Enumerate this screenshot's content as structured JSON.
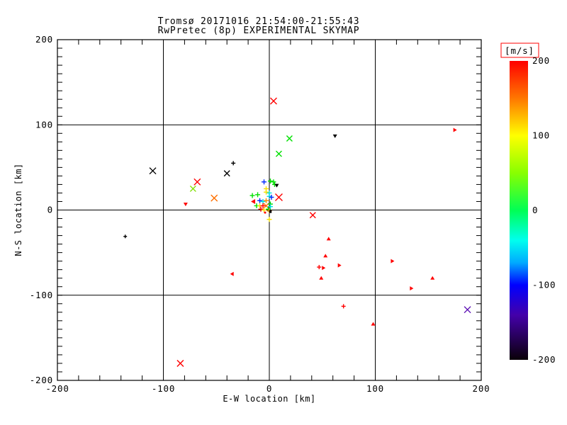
{
  "page": {
    "background": "#ffffff",
    "frame_color": "#000000"
  },
  "chart_data": {
    "type": "scatter",
    "title": "Tromsø 20171016 21:54:00-21:55:43",
    "subtitle": "RwPretec (8p) EXPERIMENTAL SKYMAP",
    "xlabel": "E-W location [km]",
    "ylabel": "N-S location [km]",
    "xlim": [
      -200,
      200
    ],
    "ylim": [
      -200,
      200
    ],
    "xticks": [
      -200,
      -100,
      0,
      100,
      200
    ],
    "yticks": [
      -200,
      -100,
      0,
      100,
      200
    ],
    "x_minor_step": 20,
    "y_minor_step": 10,
    "grid": true,
    "legend_position": "right-colorbar",
    "colorbar": {
      "label": "[m/s]",
      "label_box_color": "#ff0000",
      "range": [
        -200,
        200
      ],
      "ticks": [
        200,
        100,
        0,
        -100,
        -200
      ],
      "stops": [
        {
          "v": 200,
          "color": "#ff0000"
        },
        {
          "v": 150,
          "color": "#ff7700"
        },
        {
          "v": 100,
          "color": "#ffff00"
        },
        {
          "v": 50,
          "color": "#88ff00"
        },
        {
          "v": 0,
          "color": "#00ff55"
        },
        {
          "v": -40,
          "color": "#00ffee"
        },
        {
          "v": -70,
          "color": "#00aaff"
        },
        {
          "v": -100,
          "color": "#0000ff"
        },
        {
          "v": -140,
          "color": "#4400aa"
        },
        {
          "v": -200,
          "color": "#0a0008"
        }
      ]
    },
    "points": [
      {
        "ew": 4,
        "ns": 128,
        "v": 190,
        "color": "#ff0000",
        "marker": "x"
      },
      {
        "ew": 19,
        "ns": 84,
        "v": 50,
        "color": "#00e000",
        "marker": "x",
        "size": 8
      },
      {
        "ew": 9,
        "ns": 66,
        "v": 50,
        "color": "#00e000",
        "marker": "x",
        "size": 8
      },
      {
        "ew": 62,
        "ns": 87,
        "v": -200,
        "color": "#000000",
        "marker": "tri-down"
      },
      {
        "ew": 175,
        "ns": 94,
        "v": 190,
        "color": "#ff0000",
        "marker": "tri-right"
      },
      {
        "ew": -110,
        "ns": 46,
        "v": -200,
        "color": "#000000",
        "marker": "x"
      },
      {
        "ew": -34,
        "ns": 55,
        "v": -200,
        "color": "#000000",
        "marker": "plus",
        "size": 6
      },
      {
        "ew": -40,
        "ns": 43,
        "v": -200,
        "color": "#000000",
        "marker": "x",
        "size": 8
      },
      {
        "ew": -68,
        "ns": 33,
        "v": 190,
        "color": "#ff0000",
        "marker": "x"
      },
      {
        "ew": -72,
        "ns": 25,
        "v": 80,
        "color": "#7fe000",
        "marker": "x",
        "size": 8
      },
      {
        "ew": -52,
        "ns": 14,
        "v": 150,
        "color": "#ff7000",
        "marker": "x"
      },
      {
        "ew": -79,
        "ns": 7,
        "v": 190,
        "color": "#ff0000",
        "marker": "tri-down",
        "size": 4
      },
      {
        "ew": -136,
        "ns": -31,
        "v": -200,
        "color": "#000000",
        "marker": "plus",
        "size": 5
      },
      {
        "ew": -35,
        "ns": -75,
        "v": 190,
        "color": "#ff0000",
        "marker": "tri-left",
        "size": 4
      },
      {
        "ew": -84,
        "ns": -180,
        "v": 190,
        "color": "#ff0000",
        "marker": "x"
      },
      {
        "ew": 41,
        "ns": -6,
        "v": 190,
        "color": "#ff0000",
        "marker": "x",
        "size": 8
      },
      {
        "ew": 56,
        "ns": -34,
        "v": 190,
        "color": "#ff0000",
        "marker": "tri-up",
        "size": 4
      },
      {
        "ew": 53,
        "ns": -54,
        "v": 190,
        "color": "#ff0000",
        "marker": "tri-up",
        "size": 4
      },
      {
        "ew": 47,
        "ns": -67,
        "v": 190,
        "color": "#ff0000",
        "marker": "plus",
        "size": 6
      },
      {
        "ew": 51,
        "ns": -68,
        "v": 190,
        "color": "#ff0000",
        "marker": "tri-right",
        "size": 4
      },
      {
        "ew": 66,
        "ns": -65,
        "v": 190,
        "color": "#ff0000",
        "marker": "tri-right",
        "size": 4
      },
      {
        "ew": 49,
        "ns": -80,
        "v": 190,
        "color": "#ff0000",
        "marker": "tri-up",
        "size": 4
      },
      {
        "ew": 70,
        "ns": -113,
        "v": 190,
        "color": "#ff0000",
        "marker": "plus",
        "size": 6
      },
      {
        "ew": 98,
        "ns": -134,
        "v": 190,
        "color": "#ff0000",
        "marker": "tri-up",
        "size": 4
      },
      {
        "ew": 116,
        "ns": -60,
        "v": 190,
        "color": "#ff0000",
        "marker": "tri-right",
        "size": 4
      },
      {
        "ew": 134,
        "ns": -92,
        "v": 190,
        "color": "#ff0000",
        "marker": "tri-right",
        "size": 4
      },
      {
        "ew": 154,
        "ns": -80,
        "v": 190,
        "color": "#ff0000",
        "marker": "tri-up",
        "size": 4
      },
      {
        "ew": 187,
        "ns": -117,
        "v": -150,
        "color": "#5c0fb4",
        "marker": "x"
      },
      {
        "ew": -5,
        "ns": 33,
        "v": -95,
        "color": "#0028ff",
        "marker": "plus"
      },
      {
        "ew": 1,
        "ns": 34,
        "v": 40,
        "color": "#00e000",
        "marker": "plus"
      },
      {
        "ew": 4,
        "ns": 33,
        "v": 40,
        "color": "#00e000",
        "marker": "plus"
      },
      {
        "ew": 5,
        "ns": 30,
        "v": 40,
        "color": "#00e000",
        "marker": "plus"
      },
      {
        "ew": 7,
        "ns": 29,
        "v": -200,
        "color": "#000000",
        "marker": "tri-down",
        "size": 4
      },
      {
        "ew": -3,
        "ns": 25,
        "v": 100,
        "color": "#f5e000",
        "marker": "plus"
      },
      {
        "ew": -16,
        "ns": 17,
        "v": 40,
        "color": "#00e000",
        "marker": "plus"
      },
      {
        "ew": -11,
        "ns": 18,
        "v": 40,
        "color": "#00e000",
        "marker": "plus"
      },
      {
        "ew": -3,
        "ns": 21,
        "v": 100,
        "color": "#f5e000",
        "marker": "plus"
      },
      {
        "ew": 0,
        "ns": 20,
        "v": -45,
        "color": "#00dede",
        "marker": "plus"
      },
      {
        "ew": 0,
        "ns": 16,
        "v": -45,
        "color": "#00dede",
        "marker": "plus"
      },
      {
        "ew": 2,
        "ns": 15,
        "v": -95,
        "color": "#0028ff",
        "marker": "plus"
      },
      {
        "ew": 9,
        "ns": 15,
        "v": 190,
        "color": "#ff0000",
        "marker": "x",
        "size": 10
      },
      {
        "ew": -15,
        "ns": 10,
        "v": 190,
        "color": "#ff0000",
        "marker": "tri-left",
        "size": 5
      },
      {
        "ew": -9,
        "ns": 11,
        "v": -95,
        "color": "#0028ff",
        "marker": "plus"
      },
      {
        "ew": -6,
        "ns": 10,
        "v": -45,
        "color": "#00dede",
        "marker": "plus"
      },
      {
        "ew": -3,
        "ns": 11,
        "v": 140,
        "color": "#ff8c00",
        "marker": "plus"
      },
      {
        "ew": -12,
        "ns": 5,
        "v": 40,
        "color": "#00e000",
        "marker": "plus"
      },
      {
        "ew": -9,
        "ns": 5,
        "v": 100,
        "color": "#f5e000",
        "marker": "plus"
      },
      {
        "ew": -6,
        "ns": 5,
        "v": 190,
        "color": "#ff0000",
        "marker": "plus"
      },
      {
        "ew": -3,
        "ns": 5,
        "v": 150,
        "color": "#ff7000",
        "marker": "x",
        "size": 7
      },
      {
        "ew": 1,
        "ns": 7,
        "v": 40,
        "color": "#00e000",
        "marker": "plus"
      },
      {
        "ew": 1,
        "ns": 4,
        "v": -45,
        "color": "#00dede",
        "marker": "plus"
      },
      {
        "ew": -8,
        "ns": 1,
        "v": 190,
        "color": "#ff0000",
        "marker": "plus"
      },
      {
        "ew": -5,
        "ns": 0,
        "v": 100,
        "color": "#f5e000",
        "marker": "plus"
      },
      {
        "ew": -1,
        "ns": 1,
        "v": 40,
        "color": "#00e000",
        "marker": "plus"
      },
      {
        "ew": 0,
        "ns": -1,
        "v": 140,
        "color": "#ff8c00",
        "marker": "plus"
      },
      {
        "ew": -4,
        "ns": -3,
        "v": 190,
        "color": "#ff0000",
        "marker": "dot"
      },
      {
        "ew": 1,
        "ns": -2,
        "v": -200,
        "color": "#000000",
        "marker": "square"
      },
      {
        "ew": 0,
        "ns": -11,
        "v": 100,
        "color": "#f5e000",
        "marker": "plus"
      }
    ]
  }
}
